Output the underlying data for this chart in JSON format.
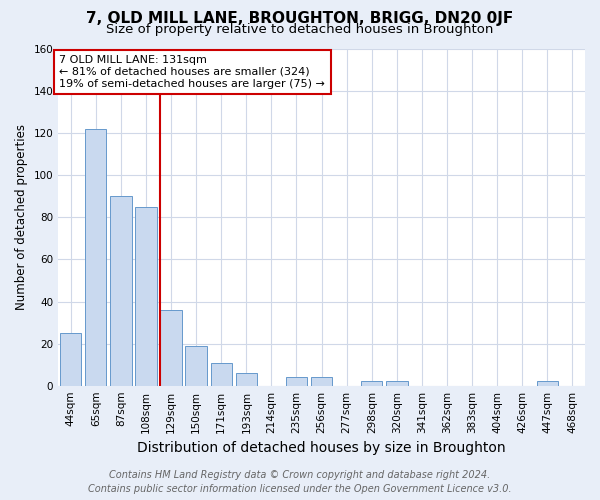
{
  "title": "7, OLD MILL LANE, BROUGHTON, BRIGG, DN20 0JF",
  "subtitle": "Size of property relative to detached houses in Broughton",
  "xlabel": "Distribution of detached houses by size in Broughton",
  "ylabel": "Number of detached properties",
  "categories": [
    "44sqm",
    "65sqm",
    "87sqm",
    "108sqm",
    "129sqm",
    "150sqm",
    "171sqm",
    "193sqm",
    "214sqm",
    "235sqm",
    "256sqm",
    "277sqm",
    "298sqm",
    "320sqm",
    "341sqm",
    "362sqm",
    "383sqm",
    "404sqm",
    "426sqm",
    "447sqm",
    "468sqm"
  ],
  "values": [
    25,
    122,
    90,
    85,
    36,
    19,
    11,
    6,
    0,
    4,
    4,
    0,
    2,
    2,
    0,
    0,
    0,
    0,
    0,
    2,
    0
  ],
  "bar_color": "#c9d9ef",
  "bar_edge_color": "#6699cc",
  "red_line_index": 4,
  "red_line_color": "#cc0000",
  "annotation_line1": "7 OLD MILL LANE: 131sqm",
  "annotation_line2": "← 81% of detached houses are smaller (324)",
  "annotation_line3": "19% of semi-detached houses are larger (75) →",
  "annotation_box_color": "#ffffff",
  "annotation_box_edge": "#cc0000",
  "ylim": [
    0,
    160
  ],
  "yticks": [
    0,
    20,
    40,
    60,
    80,
    100,
    120,
    140,
    160
  ],
  "ax_background": "#ffffff",
  "fig_background": "#e8eef8",
  "grid_color": "#d0d8e8",
  "title_fontsize": 11,
  "subtitle_fontsize": 9.5,
  "xlabel_fontsize": 10,
  "ylabel_fontsize": 8.5,
  "tick_fontsize": 7.5,
  "annotation_fontsize": 8,
  "footer_fontsize": 7,
  "footer_line1": "Contains HM Land Registry data © Crown copyright and database right 2024.",
  "footer_line2": "Contains public sector information licensed under the Open Government Licence v3.0."
}
